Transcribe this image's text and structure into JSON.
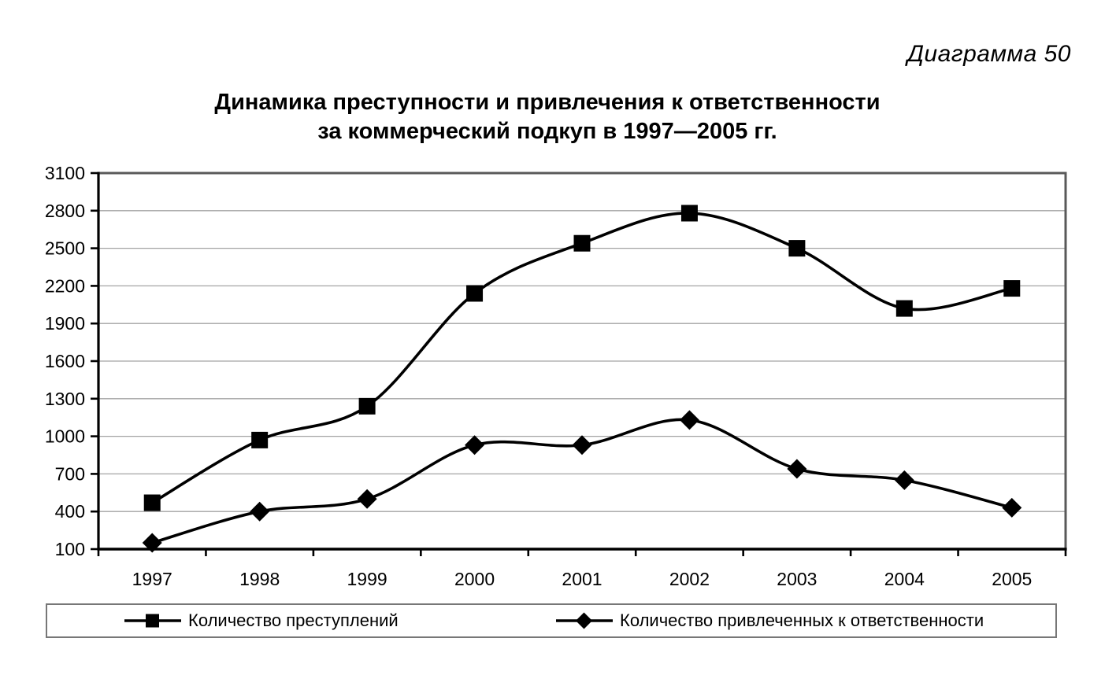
{
  "header": {
    "diagram_label": "Диаграмма 50",
    "title_line1": "Динамика преступности и привлечения к ответственности",
    "title_line2": "за коммерческий подкуп в 1997—2005 гг."
  },
  "chart_data": {
    "type": "line",
    "title": "Динамика преступности и привлечения к ответственности за коммерческий подкуп в 1997—2005 гг.",
    "categories": [
      "1997",
      "1998",
      "1999",
      "2000",
      "2001",
      "2002",
      "2003",
      "2004",
      "2005"
    ],
    "series": [
      {
        "name": "Количество преступлений",
        "marker": "square",
        "values": [
          470,
          970,
          1240,
          2140,
          2540,
          2780,
          2500,
          2020,
          2180
        ]
      },
      {
        "name": "Количество привлеченных к ответственности",
        "marker": "diamond",
        "values": [
          150,
          400,
          500,
          930,
          930,
          1130,
          740,
          650,
          430
        ]
      }
    ],
    "xlabel": "",
    "ylabel": "",
    "ylim": [
      100,
      3100
    ],
    "ytick_step": 300,
    "y_ticks": [
      100,
      400,
      700,
      1000,
      1300,
      1600,
      1900,
      2200,
      2500,
      2800,
      3100
    ],
    "grid": true,
    "line_smoothing": true,
    "legend_position": "bottom"
  },
  "colors": {
    "background": "#ffffff",
    "series_line": "#000000",
    "marker_fill": "#000000",
    "gridline": "#a3a3a3",
    "frame": "#595959",
    "axis": "#000000",
    "legend_border": "#777777",
    "text": "#000000"
  }
}
